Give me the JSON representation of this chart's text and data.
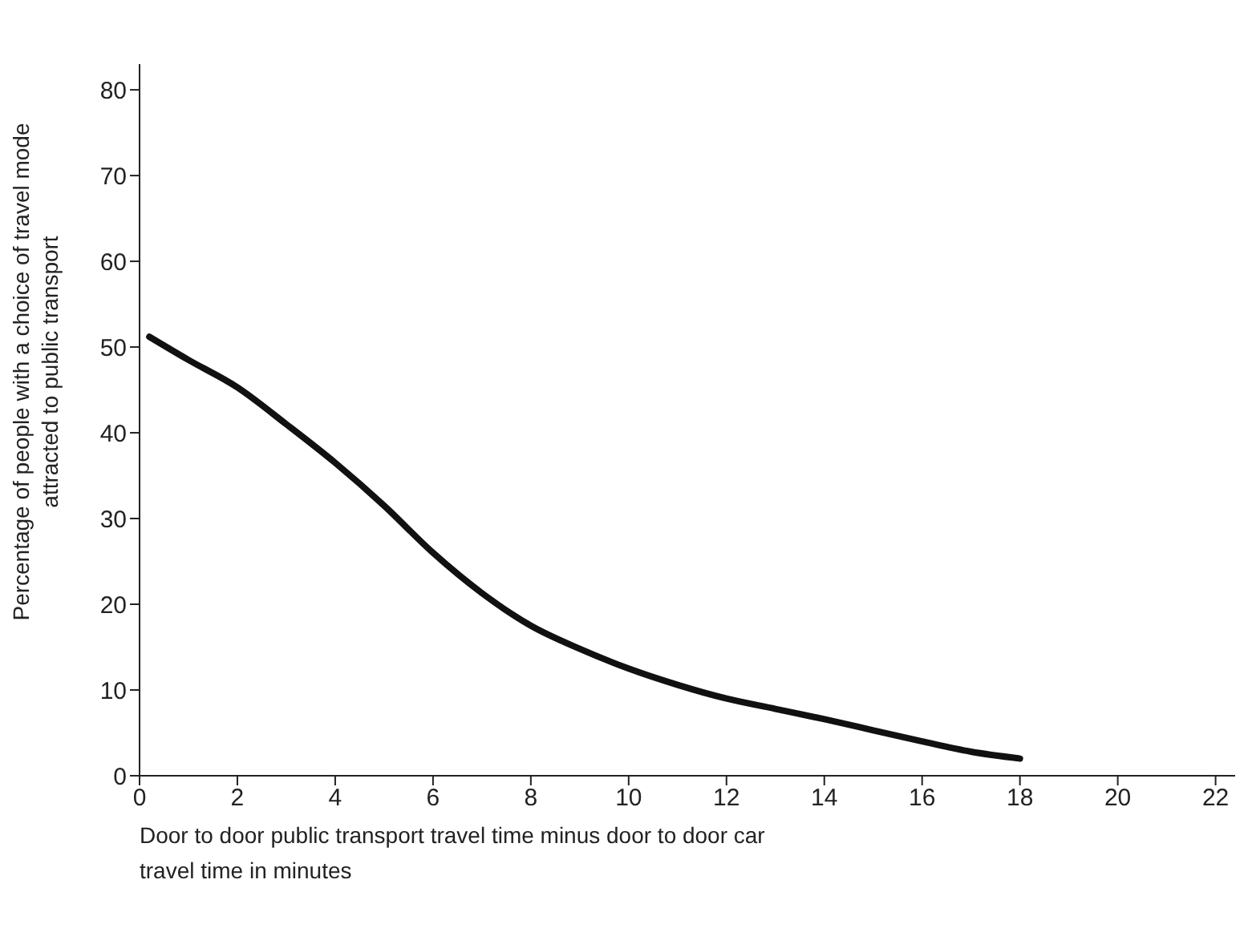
{
  "chart_data": {
    "type": "line",
    "xlabel": "Door to door public transport travel time minus door to door car\ntravel time in minutes",
    "ylabel": "Percentage of people with a choice of travel mode\nattracted to public transport",
    "x": [
      0.2,
      1,
      2,
      3,
      4,
      5,
      6,
      7,
      8,
      9,
      10,
      11,
      12,
      13,
      14,
      15,
      16,
      17,
      18
    ],
    "series": [
      {
        "color": "#111111",
        "values": [
          51.2,
          48.5,
          45.3,
          41,
          36.5,
          31.5,
          26,
          21.3,
          17.5,
          14.8,
          12.5,
          10.6,
          9,
          7.8,
          6.6,
          5.3,
          4,
          2.8,
          2
        ]
      }
    ],
    "xlim": [
      0,
      22.4
    ],
    "xticks": [
      0,
      2,
      4,
      6,
      8,
      10,
      12,
      14,
      16,
      18,
      20,
      22
    ],
    "ylim": [
      0,
      83
    ],
    "yticks": [
      0,
      10,
      20,
      30,
      40,
      50,
      60,
      70,
      80
    ],
    "grid": false,
    "legend": false,
    "marker": "none",
    "line_style": "solid"
  }
}
